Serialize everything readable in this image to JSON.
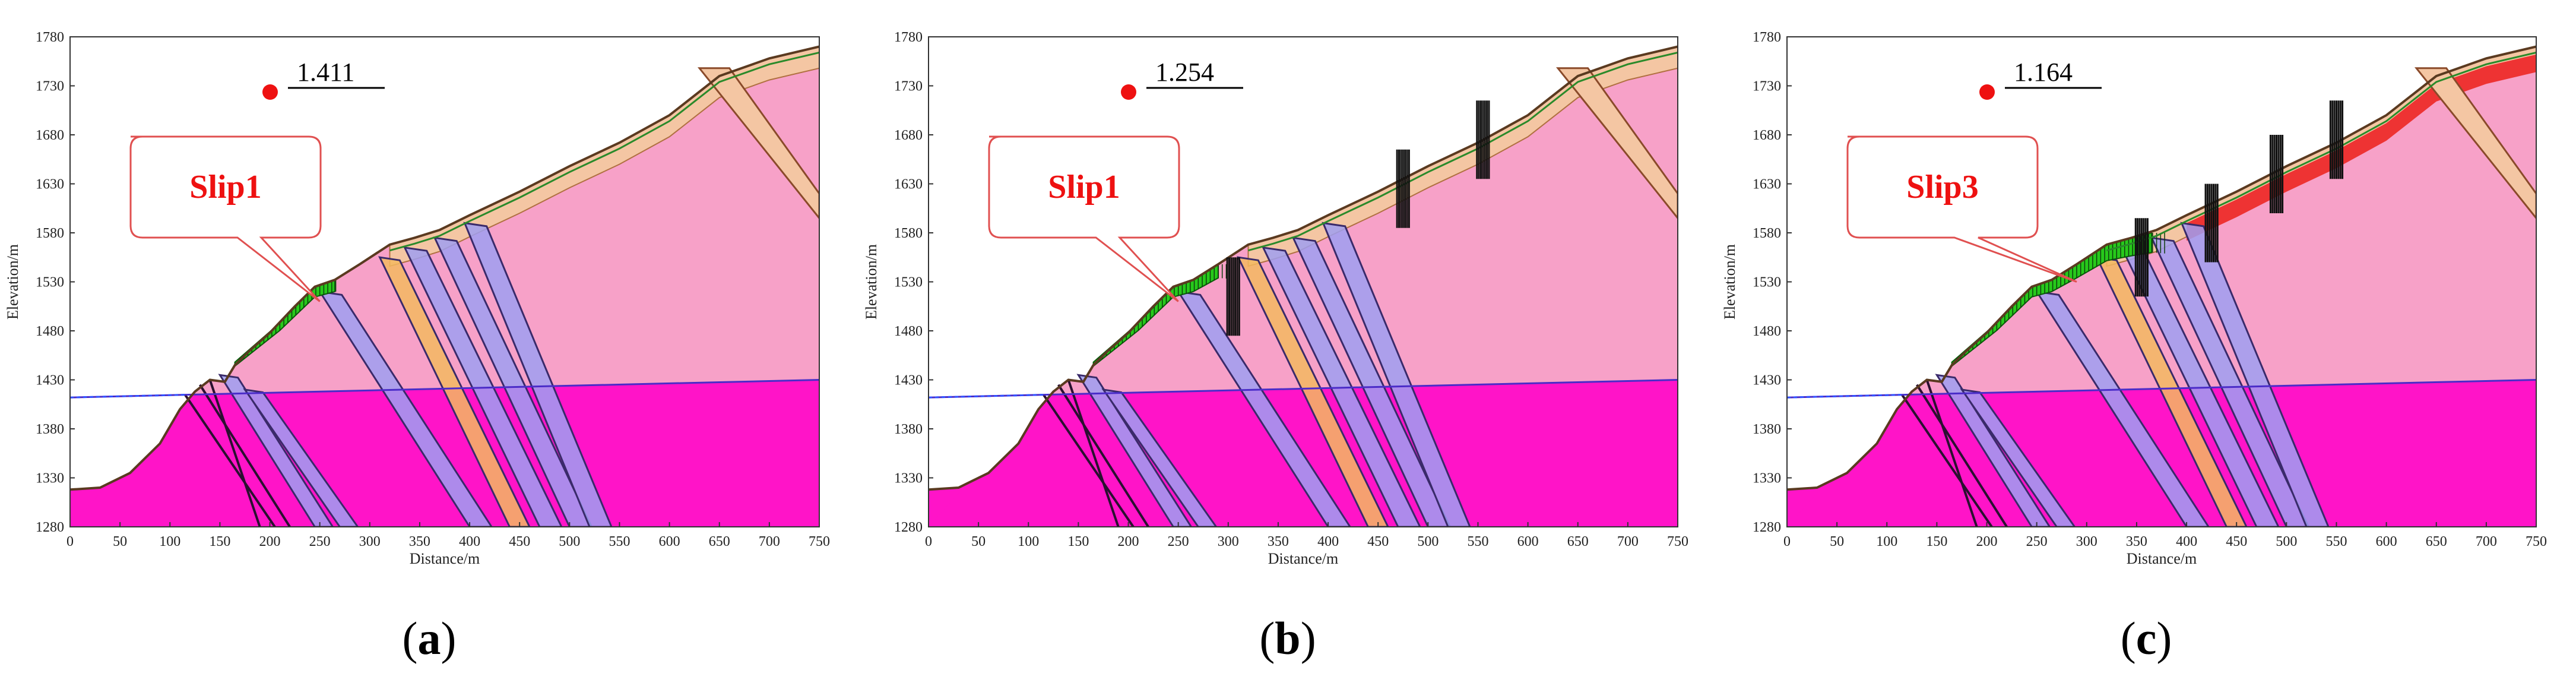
{
  "panels": [
    {
      "id": "a",
      "letter": "a",
      "factor": "1.411",
      "slip_label": "Slip1",
      "xlabel": "Distance/m",
      "ylabel": "Elevation/m",
      "x_ticks": [
        "0",
        "50",
        "100",
        "150",
        "200",
        "250",
        "300",
        "350",
        "400",
        "450",
        "500",
        "550",
        "600",
        "650",
        "700",
        "750"
      ],
      "y_ticks": [
        "1780",
        "1730",
        "1680",
        "1630",
        "1580",
        "1530",
        "1480",
        "1430",
        "1380",
        "1330",
        "1280"
      ]
    },
    {
      "id": "b",
      "letter": "b",
      "factor": "1.254",
      "slip_label": "Slip1",
      "xlabel": "Distance/m",
      "ylabel": "Elevation/m",
      "x_ticks": [
        "0",
        "50",
        "100",
        "150",
        "200",
        "250",
        "300",
        "350",
        "400",
        "450",
        "500",
        "550",
        "600",
        "650",
        "700",
        "750"
      ],
      "y_ticks": [
        "1780",
        "1730",
        "1680",
        "1630",
        "1580",
        "1530",
        "1480",
        "1430",
        "1380",
        "1330",
        "1280"
      ]
    },
    {
      "id": "c",
      "letter": "c",
      "factor": "1.164",
      "slip_label": "Slip3",
      "xlabel": "Distance/m",
      "ylabel": "Elevation/m",
      "x_ticks": [
        "0",
        "50",
        "100",
        "150",
        "200",
        "250",
        "300",
        "350",
        "400",
        "450",
        "500",
        "550",
        "600",
        "650",
        "700",
        "750"
      ],
      "y_ticks": [
        "1780",
        "1730",
        "1680",
        "1630",
        "1580",
        "1530",
        "1480",
        "1430",
        "1380",
        "1330",
        "1280"
      ]
    }
  ],
  "colors": {
    "upper_rock": "#f7a1c8",
    "lower_rock": "#ff14c8",
    "reservoir": "#c7f0fb",
    "slip_mass": "#27c91b",
    "cap_layer": "#f4c6a3",
    "fault_band": "#9f9ff1",
    "fault_orange": "#f3b960",
    "factor_dot": "#ee1111",
    "slip_text": "#ee1111"
  }
}
